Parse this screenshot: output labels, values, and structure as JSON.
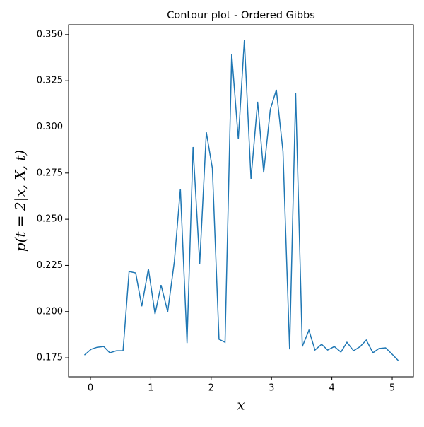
{
  "chart_data": {
    "type": "line",
    "title": "Contour plot - Ordered Gibbs",
    "x_label": "x",
    "y_label": "p(t = 2|x, X, t)",
    "x": [
      -0.1,
      0.01,
      0.11,
      0.22,
      0.32,
      0.43,
      0.54,
      0.64,
      0.75,
      0.85,
      0.96,
      1.07,
      1.17,
      1.28,
      1.39,
      1.49,
      1.6,
      1.7,
      1.81,
      1.92,
      2.02,
      2.13,
      2.23,
      2.34,
      2.45,
      2.55,
      2.66,
      2.77,
      2.87,
      2.98,
      3.08,
      3.19,
      3.3,
      3.4,
      3.51,
      3.62,
      3.72,
      3.83,
      3.93,
      4.04,
      4.15,
      4.25,
      4.36,
      4.47,
      4.57,
      4.68,
      4.78,
      4.89,
      5.0,
      5.1
    ],
    "series": [
      {
        "color": "#1f77b4",
        "values": [
          0.1765,
          0.1796,
          0.1807,
          0.1811,
          0.1777,
          0.1788,
          0.1788,
          0.2217,
          0.2209,
          0.2029,
          0.2232,
          0.1987,
          0.2144,
          0.1999,
          0.2271,
          0.2665,
          0.183,
          0.2891,
          0.2259,
          0.2971,
          0.2776,
          0.185,
          0.1834,
          0.3396,
          0.2933,
          0.3469,
          0.2719,
          0.3136,
          0.2753,
          0.3094,
          0.3201,
          0.2868,
          0.1796,
          0.3182,
          0.1811,
          0.1899,
          0.1792,
          0.1823,
          0.1792,
          0.1811,
          0.1781,
          0.1834,
          0.1788,
          0.1811,
          0.1846,
          0.1777,
          0.18,
          0.1804,
          0.1769,
          0.1735
        ]
      }
    ],
    "xlim": [
      -0.363,
      5.351
    ],
    "ylim": [
      0.1647,
      0.3553
    ],
    "xticks": [
      0,
      1,
      2,
      3,
      4,
      5
    ],
    "yticks": [
      0.175,
      {
        "value": 0.2,
        "label": "0.200"
      },
      0.225,
      {
        "value": 0.25,
        "label": "0.250"
      },
      0.275,
      {
        "value": 0.3,
        "label": "0.300"
      },
      0.325,
      {
        "value": 0.35,
        "label": "0.350"
      }
    ]
  }
}
